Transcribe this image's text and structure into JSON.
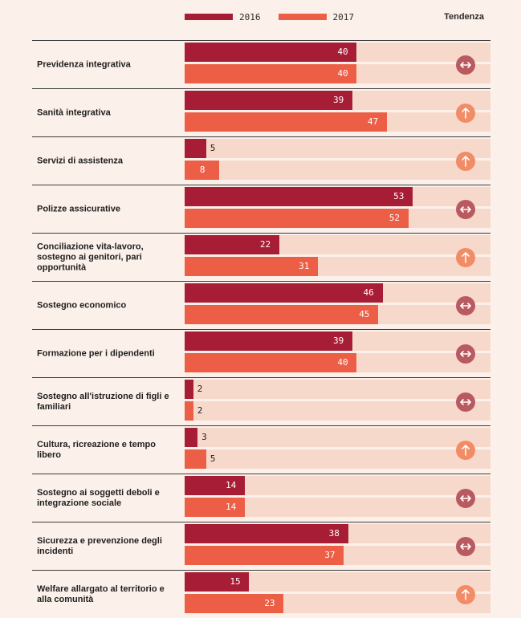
{
  "legend": {
    "series1_label": "2016",
    "series2_label": "2017",
    "trend_header": "Tendenza"
  },
  "colors": {
    "series1": "#a71d35",
    "series2": "#ec5e46",
    "track": "#f7d9cb",
    "trend_stable": "#b95a61",
    "trend_up": "#f28c67"
  },
  "chart_data": {
    "type": "bar",
    "orientation": "horizontal",
    "xlim": [
      0,
      100
    ],
    "grid": false,
    "legend_position": "top",
    "categories": [
      "Previdenza integrativa",
      "Sanità integrativa",
      "Servizi di assistenza",
      "Polizze assicurative",
      "Conciliazione vita-lavoro, sostegno ai genitori, pari opportunità",
      "Sostegno economico",
      "Formazione per i dipendenti",
      "Sostegno all'istruzione di figli e familiari",
      "Cultura, ricreazione e tempo libero",
      "Sostegno ai soggetti deboli e integrazione sociale",
      "Sicurezza e prevenzione degli incidenti",
      "Welfare allargato al territorio e alla comunità"
    ],
    "series": [
      {
        "name": "2016",
        "values": [
          40,
          39,
          5,
          53,
          22,
          46,
          39,
          2,
          3,
          14,
          38,
          15
        ]
      },
      {
        "name": "2017",
        "values": [
          40,
          47,
          8,
          52,
          31,
          45,
          40,
          2,
          5,
          14,
          37,
          23
        ]
      }
    ],
    "trend": [
      "stable",
      "up",
      "up",
      "stable",
      "up",
      "stable",
      "stable",
      "stable",
      "up",
      "stable",
      "stable",
      "up"
    ]
  }
}
